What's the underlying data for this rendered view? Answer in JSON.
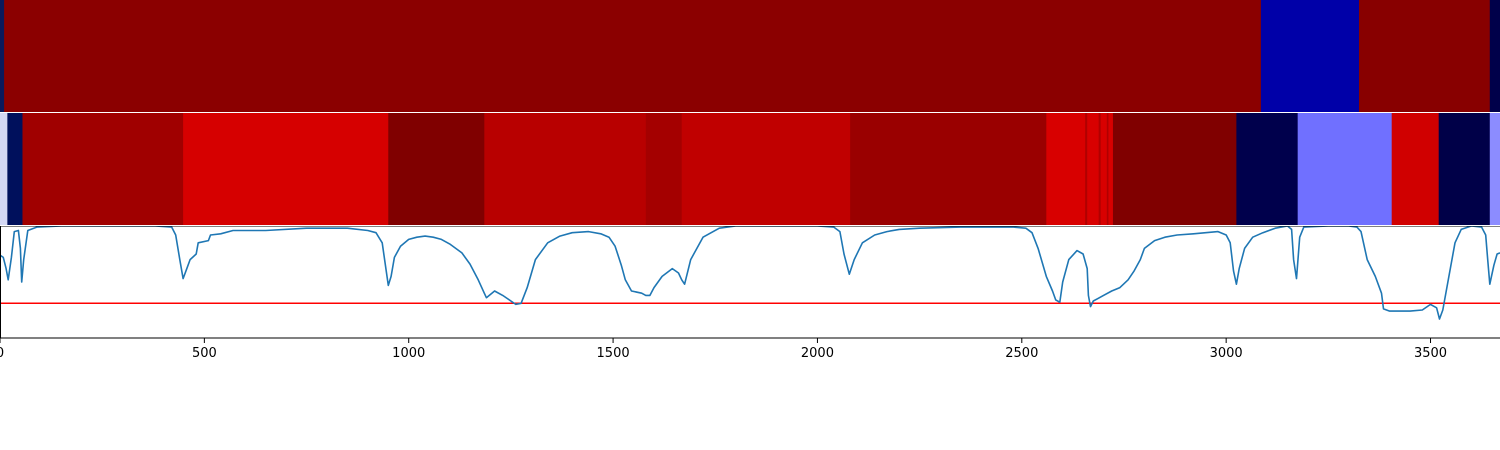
{
  "chart_data": {
    "type": "heatmap",
    "colors": {
      "line": "#1f77b4",
      "threshold": "#ff0000",
      "axis": "#000000",
      "divider": "#ffffff"
    },
    "x_axis": {
      "range": [
        0,
        3670
      ],
      "ticks": [
        0,
        500,
        1000,
        1500,
        2000,
        2500,
        3000,
        3500
      ],
      "tick_labels": [
        "0",
        "500",
        "1000",
        "1500",
        "2000",
        "2500",
        "3000",
        "3500"
      ]
    },
    "segment_bar_top": [
      {
        "start": 0,
        "end": 10,
        "color": "#0a1a5c"
      },
      {
        "start": 10,
        "end": 3085,
        "color": "#8b0000"
      },
      {
        "start": 3085,
        "end": 3325,
        "color": "#0000a8"
      },
      {
        "start": 3325,
        "end": 3645,
        "color": "#880000"
      },
      {
        "start": 3645,
        "end": 3670,
        "color": "#00004a"
      }
    ],
    "segment_bar_bottom": [
      {
        "start": 0,
        "end": 18,
        "color": "#d4d8f4"
      },
      {
        "start": 18,
        "end": 55,
        "color": "#00105c"
      },
      {
        "start": 55,
        "end": 448,
        "color": "#a00000"
      },
      {
        "start": 448,
        "end": 950,
        "color": "#d60000"
      },
      {
        "start": 950,
        "end": 1185,
        "color": "#800000"
      },
      {
        "start": 1185,
        "end": 1580,
        "color": "#b80000"
      },
      {
        "start": 1580,
        "end": 1668,
        "color": "#a40000"
      },
      {
        "start": 1668,
        "end": 2080,
        "color": "#c00000"
      },
      {
        "start": 2080,
        "end": 2560,
        "color": "#9a0000"
      },
      {
        "start": 2560,
        "end": 2655,
        "color": "#d80000"
      },
      {
        "start": 2655,
        "end": 2660,
        "color": "#b00000"
      },
      {
        "start": 2660,
        "end": 2688,
        "color": "#d80000"
      },
      {
        "start": 2688,
        "end": 2693,
        "color": "#b00000"
      },
      {
        "start": 2693,
        "end": 2708,
        "color": "#d80000"
      },
      {
        "start": 2708,
        "end": 2712,
        "color": "#b00000"
      },
      {
        "start": 2712,
        "end": 2723,
        "color": "#d80000"
      },
      {
        "start": 2723,
        "end": 3025,
        "color": "#800000"
      },
      {
        "start": 3025,
        "end": 3175,
        "color": "#00004c"
      },
      {
        "start": 3175,
        "end": 3405,
        "color": "#7070ff"
      },
      {
        "start": 3405,
        "end": 3520,
        "color": "#d00000"
      },
      {
        "start": 3520,
        "end": 3645,
        "color": "#000048"
      },
      {
        "start": 3645,
        "end": 3670,
        "color": "#8c8cff"
      }
    ],
    "line_series": {
      "y_range": [
        0,
        1
      ],
      "threshold": 0.31,
      "points": [
        [
          0,
          0.74
        ],
        [
          8,
          0.72
        ],
        [
          15,
          0.62
        ],
        [
          20,
          0.52
        ],
        [
          28,
          0.72
        ],
        [
          35,
          0.95
        ],
        [
          45,
          0.96
        ],
        [
          50,
          0.8
        ],
        [
          53,
          0.5
        ],
        [
          58,
          0.7
        ],
        [
          68,
          0.96
        ],
        [
          90,
          0.99
        ],
        [
          150,
          1.0
        ],
        [
          250,
          1.0
        ],
        [
          380,
          1.0
        ],
        [
          420,
          0.99
        ],
        [
          430,
          0.92
        ],
        [
          440,
          0.7
        ],
        [
          448,
          0.53
        ],
        [
          455,
          0.6
        ],
        [
          465,
          0.7
        ],
        [
          480,
          0.75
        ],
        [
          485,
          0.85
        ],
        [
          510,
          0.87
        ],
        [
          515,
          0.92
        ],
        [
          540,
          0.93
        ],
        [
          570,
          0.96
        ],
        [
          650,
          0.96
        ],
        [
          750,
          0.98
        ],
        [
          850,
          0.98
        ],
        [
          900,
          0.96
        ],
        [
          920,
          0.94
        ],
        [
          935,
          0.85
        ],
        [
          945,
          0.6
        ],
        [
          950,
          0.47
        ],
        [
          957,
          0.55
        ],
        [
          965,
          0.72
        ],
        [
          980,
          0.82
        ],
        [
          1000,
          0.88
        ],
        [
          1020,
          0.9
        ],
        [
          1040,
          0.91
        ],
        [
          1060,
          0.9
        ],
        [
          1080,
          0.88
        ],
        [
          1100,
          0.84
        ],
        [
          1130,
          0.76
        ],
        [
          1150,
          0.66
        ],
        [
          1170,
          0.52
        ],
        [
          1185,
          0.4
        ],
        [
          1190,
          0.36
        ],
        [
          1210,
          0.42
        ],
        [
          1230,
          0.38
        ],
        [
          1250,
          0.33
        ],
        [
          1262,
          0.3
        ],
        [
          1275,
          0.31
        ],
        [
          1290,
          0.45
        ],
        [
          1310,
          0.7
        ],
        [
          1340,
          0.85
        ],
        [
          1370,
          0.91
        ],
        [
          1400,
          0.94
        ],
        [
          1440,
          0.95
        ],
        [
          1470,
          0.93
        ],
        [
          1490,
          0.9
        ],
        [
          1505,
          0.82
        ],
        [
          1520,
          0.65
        ],
        [
          1530,
          0.52
        ],
        [
          1545,
          0.42
        ],
        [
          1570,
          0.4
        ],
        [
          1580,
          0.38
        ],
        [
          1590,
          0.38
        ],
        [
          1600,
          0.45
        ],
        [
          1620,
          0.55
        ],
        [
          1645,
          0.62
        ],
        [
          1660,
          0.58
        ],
        [
          1668,
          0.52
        ],
        [
          1675,
          0.48
        ],
        [
          1690,
          0.7
        ],
        [
          1720,
          0.9
        ],
        [
          1760,
          0.98
        ],
        [
          1800,
          1.0
        ],
        [
          1900,
          1.0
        ],
        [
          2000,
          1.0
        ],
        [
          2040,
          0.99
        ],
        [
          2055,
          0.95
        ],
        [
          2065,
          0.75
        ],
        [
          2078,
          0.57
        ],
        [
          2090,
          0.7
        ],
        [
          2110,
          0.85
        ],
        [
          2140,
          0.92
        ],
        [
          2170,
          0.95
        ],
        [
          2200,
          0.97
        ],
        [
          2250,
          0.98
        ],
        [
          2350,
          0.99
        ],
        [
          2480,
          0.99
        ],
        [
          2510,
          0.98
        ],
        [
          2525,
          0.94
        ],
        [
          2540,
          0.8
        ],
        [
          2560,
          0.55
        ],
        [
          2575,
          0.42
        ],
        [
          2583,
          0.34
        ],
        [
          2593,
          0.32
        ],
        [
          2600,
          0.5
        ],
        [
          2615,
          0.7
        ],
        [
          2635,
          0.78
        ],
        [
          2650,
          0.75
        ],
        [
          2660,
          0.62
        ],
        [
          2663,
          0.38
        ],
        [
          2668,
          0.28
        ],
        [
          2675,
          0.33
        ],
        [
          2685,
          0.35
        ],
        [
          2700,
          0.38
        ],
        [
          2720,
          0.42
        ],
        [
          2740,
          0.45
        ],
        [
          2760,
          0.52
        ],
        [
          2775,
          0.6
        ],
        [
          2790,
          0.7
        ],
        [
          2800,
          0.8
        ],
        [
          2825,
          0.87
        ],
        [
          2850,
          0.9
        ],
        [
          2880,
          0.92
        ],
        [
          2920,
          0.93
        ],
        [
          2950,
          0.94
        ],
        [
          2980,
          0.95
        ],
        [
          3000,
          0.92
        ],
        [
          3010,
          0.85
        ],
        [
          3018,
          0.6
        ],
        [
          3025,
          0.48
        ],
        [
          3032,
          0.62
        ],
        [
          3045,
          0.8
        ],
        [
          3065,
          0.9
        ],
        [
          3090,
          0.94
        ],
        [
          3120,
          0.98
        ],
        [
          3150,
          1.0
        ],
        [
          3160,
          0.97
        ],
        [
          3165,
          0.7
        ],
        [
          3172,
          0.53
        ],
        [
          3180,
          0.9
        ],
        [
          3190,
          0.99
        ],
        [
          3250,
          1.0
        ],
        [
          3300,
          1.0
        ],
        [
          3320,
          0.99
        ],
        [
          3330,
          0.95
        ],
        [
          3345,
          0.7
        ],
        [
          3365,
          0.55
        ],
        [
          3380,
          0.4
        ],
        [
          3385,
          0.26
        ],
        [
          3400,
          0.24
        ],
        [
          3450,
          0.24
        ],
        [
          3480,
          0.25
        ],
        [
          3500,
          0.3
        ],
        [
          3515,
          0.27
        ],
        [
          3522,
          0.17
        ],
        [
          3530,
          0.25
        ],
        [
          3545,
          0.55
        ],
        [
          3560,
          0.85
        ],
        [
          3575,
          0.97
        ],
        [
          3600,
          1.0
        ],
        [
          3625,
          0.99
        ],
        [
          3635,
          0.92
        ],
        [
          3640,
          0.7
        ],
        [
          3645,
          0.48
        ],
        [
          3655,
          0.65
        ],
        [
          3663,
          0.75
        ],
        [
          3670,
          0.76
        ]
      ]
    }
  }
}
